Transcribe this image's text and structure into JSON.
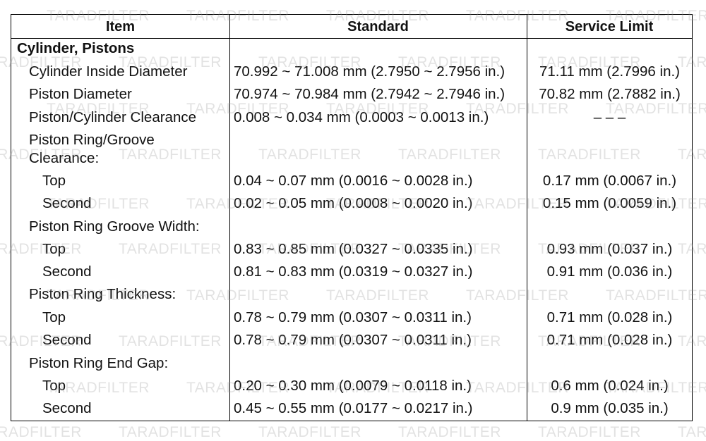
{
  "headers": {
    "item": "Item",
    "standard": "Standard",
    "service_limit": "Service Limit"
  },
  "section_title": "Cylinder, Pistons",
  "rows": [
    {
      "item": "Cylinder Inside Diameter",
      "standard": "70.992 ~ 71.008 mm (2.7950 ~ 2.7956 in.)",
      "limit": "71.11 mm (2.7996 in.)"
    },
    {
      "item": "Piston Diameter",
      "standard": "70.974 ~ 70.984 mm (2.7942 ~ 2.7946 in.)",
      "limit": "70.82 mm (2.7882 in.)"
    },
    {
      "item": "Piston/Cylinder Clearance",
      "standard": "0.008 ~ 0.034 mm (0.0003 ~ 0.0013 in.)",
      "limit": "– – –"
    },
    {
      "item": "Piston Ring/Groove Clearance:"
    },
    {
      "item": "Top",
      "standard": "0.04 ~ 0.07 mm (0.0016 ~ 0.0028 in.)",
      "limit": "0.17 mm (0.0067 in.)"
    },
    {
      "item": "Second",
      "standard": "0.02 ~ 0.05 mm (0.0008 ~ 0.0020 in.)",
      "limit": "0.15 mm (0.0059 in.)"
    },
    {
      "item": "Piston Ring Groove Width:"
    },
    {
      "item": "Top",
      "standard": "0.83 ~ 0.85 mm (0.0327 ~ 0.0335 in.)",
      "limit": "0.93 mm (0.037 in.)"
    },
    {
      "item": "Second",
      "standard": "0.81 ~ 0.83 mm (0.0319 ~ 0.0327 in.)",
      "limit": "0.91 mm (0.036 in.)"
    },
    {
      "item": "Piston Ring Thickness:"
    },
    {
      "item": "Top",
      "standard": "0.78 ~ 0.79 mm (0.0307 ~ 0.0311 in.)",
      "limit": "0.71 mm (0.028 in.)"
    },
    {
      "item": "Second",
      "standard": "0.78 ~ 0.79 mm (0.0307 ~ 0.0311 in.)",
      "limit": "0.71 mm (0.028 in.)"
    },
    {
      "item": "Piston Ring End Gap:"
    },
    {
      "item": "Top",
      "standard": "0.20 ~ 0.30 mm (0.0079 ~ 0.0118 in.)",
      "limit": "0.6 mm (0.024 in.)"
    },
    {
      "item": "Second",
      "standard": "0.45 ~ 0.55 mm (0.0177 ~ 0.0217 in.)",
      "limit": "0.9 mm (0.035 in.)"
    }
  ],
  "watermark": "TARADFILTER"
}
